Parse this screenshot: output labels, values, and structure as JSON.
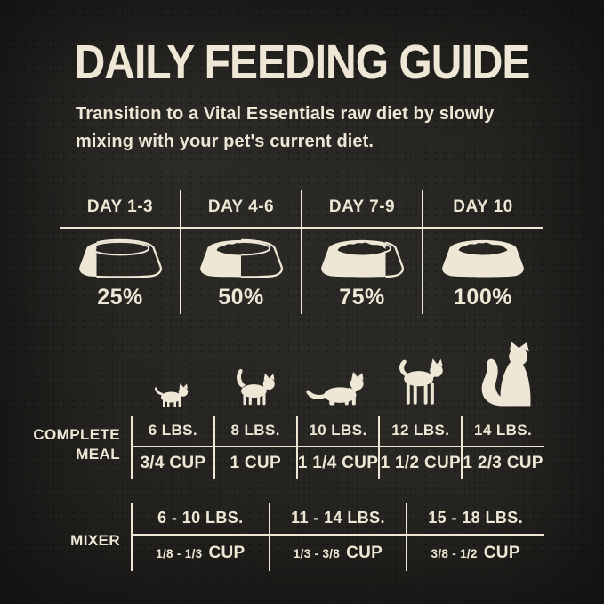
{
  "title": "DAILY FEEDING GUIDE",
  "subtitle_lines": [
    "Transition to a Vital Essentials raw diet by slowly",
    "mixing with your pet's current diet."
  ],
  "colors": {
    "background": "#242320",
    "cream": "#EFE7D5",
    "bowl_interior": "#282622"
  },
  "transition": {
    "columns": [
      {
        "day": "DAY 1-3",
        "percent_label": "25%",
        "fill_percent": 25
      },
      {
        "day": "DAY 4-6",
        "percent_label": "50%",
        "fill_percent": 50
      },
      {
        "day": "DAY 7-9",
        "percent_label": "75%",
        "fill_percent": 75
      },
      {
        "day": "DAY 10",
        "percent_label": "100%",
        "fill_percent": 100
      }
    ]
  },
  "complete_meal": {
    "label_lines": [
      "COMPLETE",
      "MEAL"
    ],
    "columns": [
      {
        "weight": "6 LBS.",
        "amount": "3/4 CUP"
      },
      {
        "weight": "8 LBS.",
        "amount": "1 CUP"
      },
      {
        "weight": "10 LBS.",
        "amount": "1 1/4 CUP"
      },
      {
        "weight": "12 LBS.",
        "amount": "1 1/2 CUP"
      },
      {
        "weight": "14 LBS.",
        "amount": "1 2/3 CUP"
      }
    ]
  },
  "mixer": {
    "label": "MIXER",
    "columns": [
      {
        "weight": "6 - 10 LBS.",
        "range": "1/8 - 1/3",
        "unit": "CUP"
      },
      {
        "weight": "11 - 14 LBS.",
        "range": "1/3 - 3/8",
        "unit": "CUP"
      },
      {
        "weight": "15 - 18 LBS.",
        "range": "3/8 - 1/2",
        "unit": "CUP"
      }
    ]
  }
}
